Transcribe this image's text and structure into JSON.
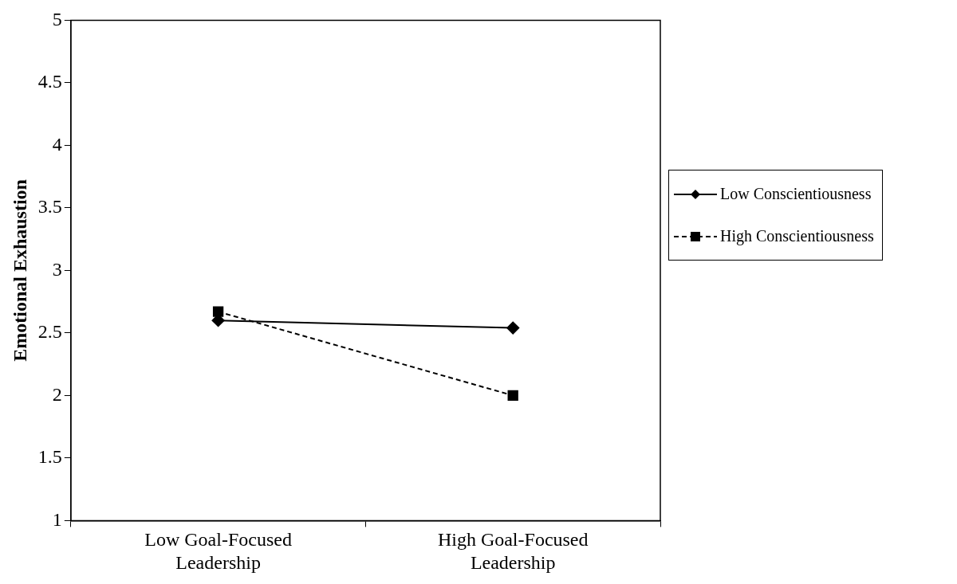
{
  "chart_data": {
    "type": "line",
    "ylabel": "Emotional Exhaustion",
    "categories": [
      "Low Goal-Focused Leadership",
      "High Goal-Focused Leadership"
    ],
    "series": [
      {
        "name": "Low Conscientiousness",
        "color": "#000000",
        "values": [
          2.6,
          2.54
        ],
        "marker": "diamond",
        "line_style": "solid"
      },
      {
        "name": "High Conscientiousness",
        "color": "#000000",
        "values": [
          2.67,
          2.0
        ],
        "marker": "square",
        "line_style": "dashed"
      }
    ],
    "ylim": [
      1,
      5
    ],
    "yticks": [
      1,
      1.5,
      2,
      2.5,
      3,
      3.5,
      4,
      4.5,
      5
    ],
    "grid": false,
    "legend": "right"
  }
}
